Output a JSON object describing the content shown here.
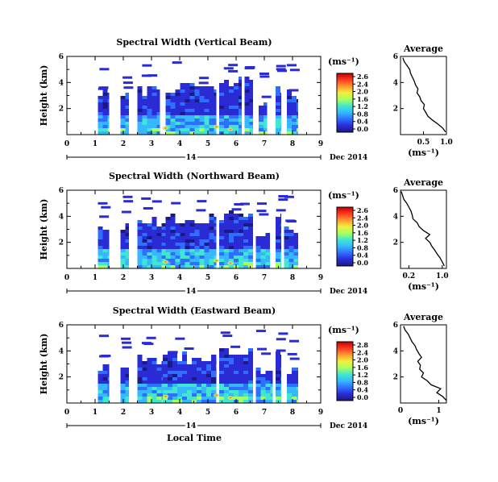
{
  "chart_data": [
    {
      "type": "heatmap",
      "title": "Spectral Width (Vertical Beam)",
      "ylabel": "Height (km)",
      "xlim": [
        0,
        9
      ],
      "ylim": [
        0,
        6
      ],
      "xticks": [
        "0",
        "1",
        "2",
        "3",
        "4",
        "5",
        "6",
        "7",
        "8",
        "9"
      ],
      "yticks": [
        "2",
        "4",
        "6"
      ],
      "date_marker": "14",
      "date_label": "Dec 2014",
      "colorbar": {
        "unit": "(ms⁻¹)",
        "ticks": [
          "2.6",
          "2.4",
          "2.0",
          "1.6",
          "1.2",
          "0.8",
          "0.4",
          "0.0"
        ],
        "range": [
          0,
          2.8
        ]
      },
      "average": {
        "title": "Average",
        "xlabel": "(ms⁻¹)",
        "xticks": [
          "0.5",
          "1.0"
        ],
        "xlim": [
          0,
          1.0
        ],
        "ylim": [
          0,
          6
        ],
        "heights": [
          0.2,
          0.5,
          0.8,
          1.1,
          1.4,
          1.7,
          2.0,
          2.3,
          2.6,
          2.9,
          3.2,
          3.5,
          3.8,
          4.1,
          4.4,
          4.7,
          5.0,
          5.3,
          5.6,
          5.9
        ],
        "values": [
          0.98,
          0.92,
          0.82,
          0.7,
          0.6,
          0.55,
          0.5,
          0.52,
          0.45,
          0.42,
          0.36,
          0.38,
          0.33,
          0.3,
          0.26,
          0.22,
          0.2,
          0.14,
          0.08,
          0.05
        ]
      },
      "echo_blocks": [
        {
          "t": [
            1.1,
            1.5
          ],
          "h": [
            0.0,
            3.2
          ]
        },
        {
          "t": [
            1.9,
            2.2
          ],
          "h": [
            0.0,
            3.3
          ]
        },
        {
          "t": [
            2.5,
            3.3
          ],
          "h": [
            0.0,
            3.5
          ]
        },
        {
          "t": [
            3.5,
            5.3
          ],
          "h": [
            0.0,
            3.8
          ]
        },
        {
          "t": [
            5.4,
            6.2
          ],
          "h": [
            0.0,
            4.2
          ]
        },
        {
          "t": [
            6.3,
            6.6
          ],
          "h": [
            0.0,
            4.6
          ]
        },
        {
          "t": [
            6.8,
            7.1
          ],
          "h": [
            0.0,
            2.6
          ]
        },
        {
          "t": [
            7.4,
            7.6
          ],
          "h": [
            0.0,
            3.5
          ]
        },
        {
          "t": [
            7.8,
            8.2
          ],
          "h": [
            0.0,
            3.2
          ]
        }
      ]
    },
    {
      "type": "heatmap",
      "title": "Spectral Width (Northward Beam)",
      "ylabel": "Height (km)",
      "xlim": [
        0,
        9
      ],
      "ylim": [
        0,
        6
      ],
      "xticks": [
        "0",
        "1",
        "2",
        "3",
        "4",
        "5",
        "6",
        "7",
        "8",
        "9"
      ],
      "yticks": [
        "2",
        "4",
        "6"
      ],
      "date_marker": "14",
      "date_label": "Dec 2014",
      "colorbar": {
        "unit": "(ms⁻¹)",
        "ticks": [
          "2.6",
          "2.4",
          "2.0",
          "1.6",
          "1.2",
          "0.8",
          "0.4",
          "0.0"
        ],
        "range": [
          0,
          2.8
        ]
      },
      "average": {
        "title": "Average",
        "xlabel": "(ms⁻¹)",
        "xticks": [
          "0.2",
          "1.0"
        ],
        "xlim": [
          0,
          1.1
        ],
        "ylim": [
          0,
          6
        ],
        "heights": [
          0.2,
          0.5,
          0.8,
          1.1,
          1.4,
          1.7,
          2.0,
          2.3,
          2.6,
          2.9,
          3.2,
          3.5,
          3.8,
          4.1,
          4.4,
          4.7,
          5.0,
          5.3,
          5.6,
          5.9
        ],
        "values": [
          1.05,
          1.0,
          0.95,
          0.88,
          0.82,
          0.75,
          0.7,
          0.6,
          0.7,
          0.55,
          0.45,
          0.4,
          0.3,
          0.28,
          0.25,
          0.2,
          0.15,
          0.08,
          0.05,
          0.02
        ]
      },
      "echo_blocks": [
        {
          "t": [
            1.1,
            1.5
          ],
          "h": [
            0.0,
            3.0
          ]
        },
        {
          "t": [
            1.9,
            2.2
          ],
          "h": [
            0.0,
            3.3
          ]
        },
        {
          "t": [
            2.5,
            3.5
          ],
          "h": [
            0.0,
            3.6
          ]
        },
        {
          "t": [
            3.5,
            5.3
          ],
          "h": [
            0.0,
            4.0
          ]
        },
        {
          "t": [
            5.4,
            6.6
          ],
          "h": [
            0.0,
            4.3
          ]
        },
        {
          "t": [
            6.7,
            7.2
          ],
          "h": [
            0.0,
            2.7
          ]
        },
        {
          "t": [
            7.4,
            7.6
          ],
          "h": [
            0.0,
            4.0
          ]
        },
        {
          "t": [
            7.7,
            8.2
          ],
          "h": [
            0.0,
            3.0
          ]
        }
      ]
    },
    {
      "type": "heatmap",
      "title": "Spectral Width (Eastward Beam)",
      "ylabel": "Height (km)",
      "xlabel": "Local Time",
      "xlim": [
        0,
        9
      ],
      "ylim": [
        0,
        6
      ],
      "xticks": [
        "0",
        "1",
        "2",
        "3",
        "4",
        "5",
        "6",
        "7",
        "8",
        "9"
      ],
      "yticks": [
        "2",
        "4",
        "6"
      ],
      "date_marker": "14",
      "date_label": "Dec 2014",
      "colorbar": {
        "unit": "(ms⁻¹)",
        "ticks": [
          "2.8",
          "2.4",
          "2.0",
          "1.6",
          "1.2",
          "0.8",
          "0.4",
          "0.0"
        ],
        "range": [
          0,
          2.8
        ]
      },
      "average": {
        "title": "Average",
        "xlabel": "(ms⁻¹)",
        "xticks": [
          "0",
          "1"
        ],
        "xlim": [
          0,
          1.2
        ],
        "ylim": [
          0,
          6
        ],
        "heights": [
          0.2,
          0.5,
          0.8,
          1.1,
          1.4,
          1.7,
          2.0,
          2.3,
          2.6,
          2.9,
          3.2,
          3.5,
          3.8,
          4.1,
          4.4,
          4.7,
          5.0,
          5.3,
          5.6,
          5.9
        ],
        "values": [
          1.2,
          1.1,
          0.95,
          1.05,
          0.8,
          0.7,
          0.55,
          0.6,
          0.5,
          0.52,
          0.45,
          0.55,
          0.48,
          0.42,
          0.38,
          0.3,
          0.25,
          0.2,
          0.12,
          0.08
        ]
      },
      "echo_blocks": [
        {
          "t": [
            1.1,
            1.5
          ],
          "h": [
            0.0,
            3.0
          ]
        },
        {
          "t": [
            1.9,
            2.2
          ],
          "h": [
            0.0,
            3.2
          ]
        },
        {
          "t": [
            2.5,
            3.4
          ],
          "h": [
            0.0,
            3.4
          ]
        },
        {
          "t": [
            3.4,
            5.3
          ],
          "h": [
            0.0,
            3.6
          ]
        },
        {
          "t": [
            5.4,
            6.6
          ],
          "h": [
            0.0,
            4.1
          ]
        },
        {
          "t": [
            6.7,
            7.3
          ],
          "h": [
            0.0,
            2.6
          ]
        },
        {
          "t": [
            7.4,
            7.6
          ],
          "h": [
            0.0,
            3.8
          ]
        },
        {
          "t": [
            7.8,
            8.2
          ],
          "h": [
            0.0,
            2.4
          ]
        }
      ]
    }
  ],
  "colors": {
    "background": "#ffffff",
    "axes": "#000000",
    "colormap": [
      "#1a1a80",
      "#2b2bd6",
      "#2f6fff",
      "#35b8ff",
      "#40e6d0",
      "#a8ff60",
      "#f0f040",
      "#ff9b30",
      "#ff3a20",
      "#c00000"
    ]
  }
}
